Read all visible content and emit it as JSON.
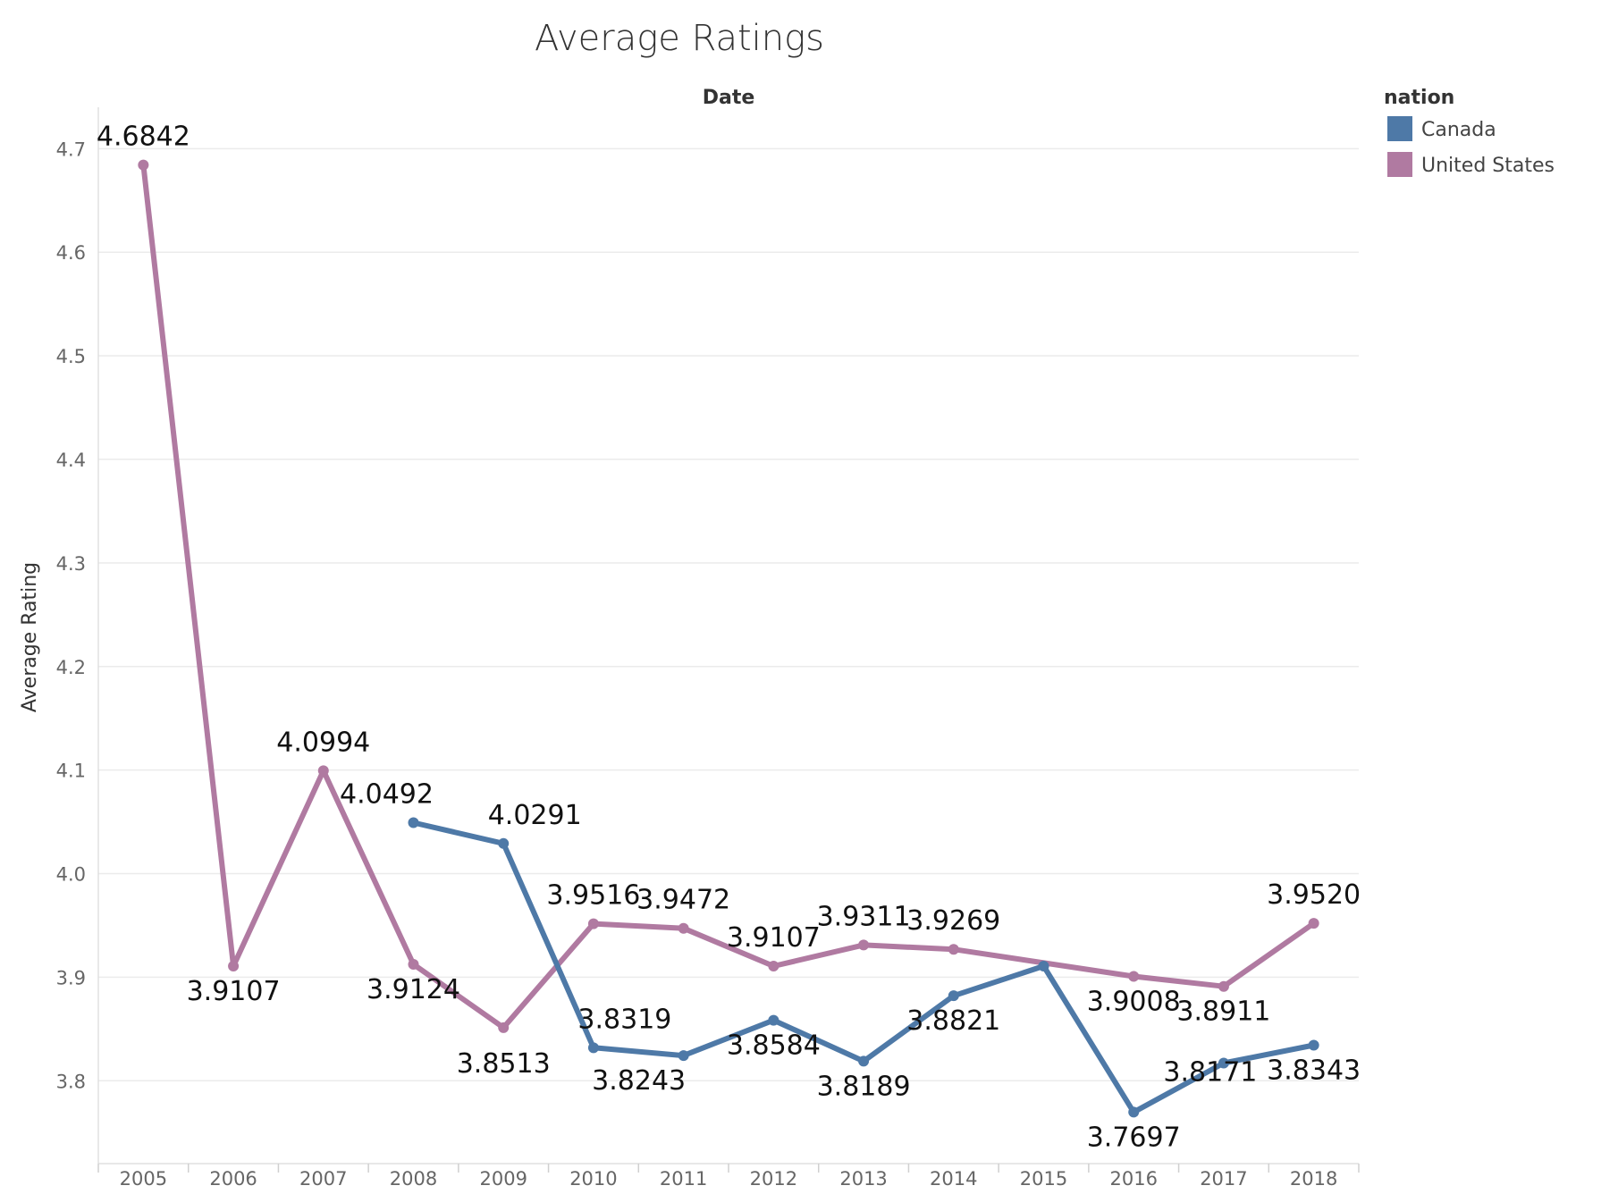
{
  "chart_data": {
    "type": "line",
    "title": "Average Ratings",
    "xlabel": "Date",
    "ylabel": "Average Rating",
    "x": [
      "2005",
      "2006",
      "2007",
      "2008",
      "2009",
      "2010",
      "2011",
      "2012",
      "2013",
      "2014",
      "2015",
      "2016",
      "2017",
      "2018"
    ],
    "ylim": [
      3.72,
      4.74
    ],
    "yticks": [
      "3.8",
      "3.9",
      "4.0",
      "4.1",
      "4.2",
      "4.3",
      "4.4",
      "4.5",
      "4.6",
      "4.7"
    ],
    "grid": true,
    "legend": {
      "title": "nation",
      "placement": "top-right"
    },
    "series": [
      {
        "name": "Canada",
        "color": "#4e79a7",
        "values": [
          null,
          null,
          null,
          4.0492,
          4.0291,
          3.8319,
          3.8243,
          3.8584,
          3.8189,
          3.8821,
          3.9107,
          3.7697,
          3.8171,
          3.8343
        ],
        "labels": [
          null,
          null,
          null,
          "4.0492",
          "4.0291",
          "3.8319",
          "3.8243",
          "3.8584",
          "3.8189",
          "3.8821",
          null,
          "3.7697",
          "3.8171",
          "3.8343"
        ]
      },
      {
        "name": "United States",
        "color": "#b07aa1",
        "values": [
          4.6842,
          3.9107,
          4.0994,
          3.9124,
          3.8513,
          3.9516,
          3.9472,
          3.9107,
          3.9311,
          3.9269,
          null,
          3.9008,
          3.8911,
          3.952
        ],
        "labels": [
          "4.6842",
          "3.9107",
          "4.0994",
          "3.9124",
          "3.8513",
          "3.9516",
          "3.9472",
          "3.9107",
          "3.9311",
          "3.9269",
          null,
          "3.9008",
          "3.8911",
          "3.9520"
        ]
      }
    ]
  }
}
